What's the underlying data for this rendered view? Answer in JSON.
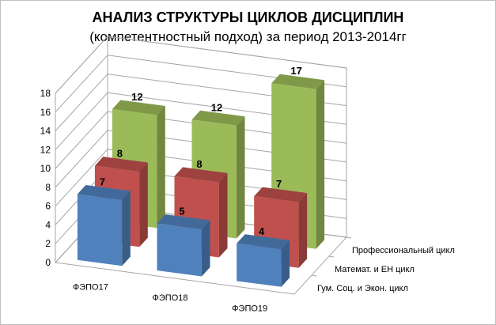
{
  "chart_data": {
    "type": "bar",
    "title": "АНАЛИЗ СТРУКТУРЫ ЦИКЛОВ ДИСЦИПЛИН",
    "subtitle": "(компетентностный подход)  за период 2013-2014гг",
    "categories": [
      "ФЭПО17",
      "ФЭПО18",
      "ФЭПО19"
    ],
    "series": [
      {
        "name": "Гум. Соц. и Экон. цикл",
        "values": [
          7,
          5,
          4
        ],
        "color": "#4f81bd"
      },
      {
        "name": "Математ. и ЕН цикл",
        "values": [
          8,
          8,
          7
        ],
        "color": "#c0504d"
      },
      {
        "name": "Профессиональный цикл",
        "values": [
          12,
          12,
          17
        ],
        "color": "#9bbb59"
      }
    ],
    "ylim": [
      0,
      18
    ],
    "yticks": [
      0,
      2,
      4,
      6,
      8,
      10,
      12,
      14,
      16,
      18
    ],
    "xlabel": "",
    "ylabel": "",
    "grid": true,
    "legend": "depth-axis-right",
    "data_labels": true
  }
}
